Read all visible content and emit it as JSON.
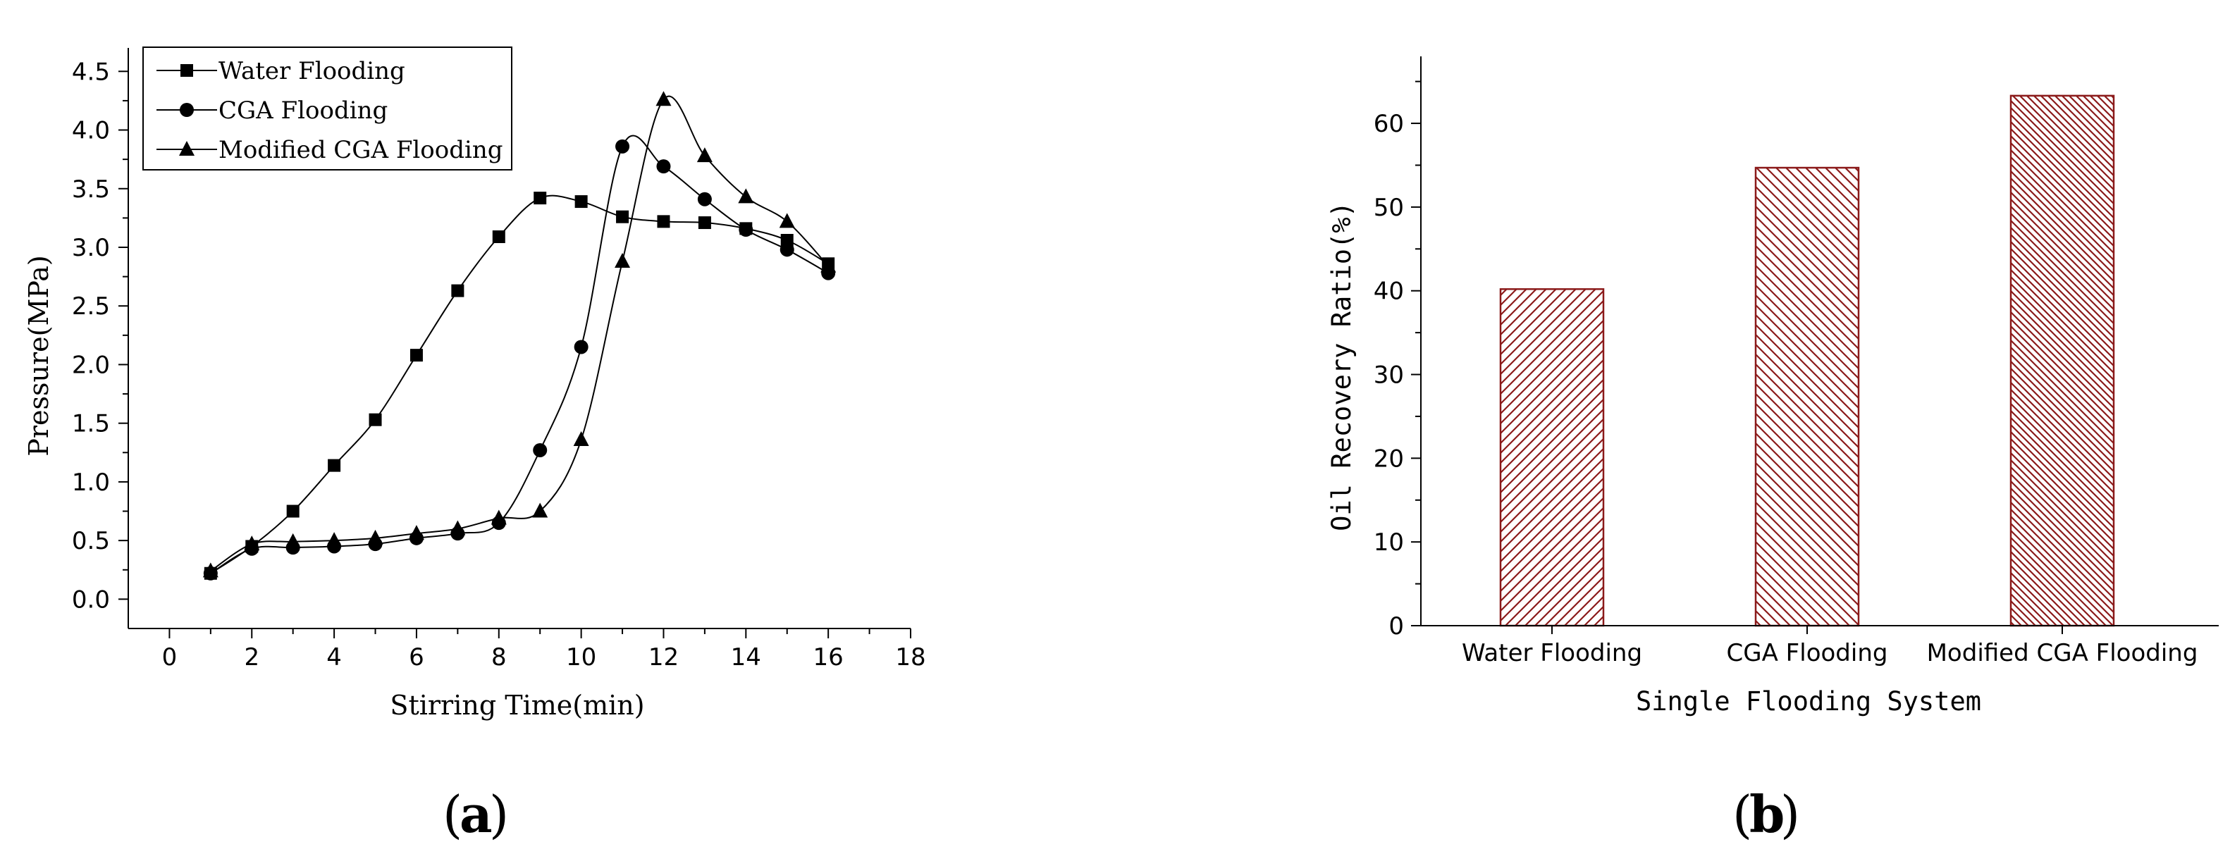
{
  "panel_labels": {
    "a": "a",
    "b": "b"
  },
  "colors": {
    "bar": "#8B1A1A",
    "axis": "#000000"
  },
  "chart_data": [
    {
      "type": "line",
      "xlabel": "Stirring Time(min)",
      "ylabel": "Pressure(MPa)",
      "xlim": [
        -1,
        18
      ],
      "ylim": [
        -0.25,
        4.7
      ],
      "xticks": [
        0,
        2,
        4,
        6,
        8,
        10,
        12,
        14,
        16,
        18
      ],
      "yticks": [
        0.0,
        0.5,
        1.0,
        1.5,
        2.0,
        2.5,
        3.0,
        3.5,
        4.0,
        4.5
      ],
      "xtick_labels": [
        "0",
        "2",
        "4",
        "6",
        "8",
        "10",
        "12",
        "14",
        "16",
        "18"
      ],
      "ytick_labels": [
        "0.0",
        "0.5",
        "1.0",
        "1.5",
        "2.0",
        "2.5",
        "3.0",
        "3.5",
        "4.0",
        "4.5"
      ],
      "legend_position": "top-left",
      "grid": false,
      "series": [
        {
          "name": "Water Flooding",
          "marker": "square",
          "x": [
            1,
            2,
            3,
            4,
            5,
            6,
            7,
            8,
            9,
            10,
            11,
            12,
            13,
            14,
            15,
            16
          ],
          "y": [
            0.22,
            0.45,
            0.75,
            1.14,
            1.53,
            2.08,
            2.63,
            3.09,
            3.42,
            3.39,
            3.26,
            3.22,
            3.21,
            3.16,
            3.06,
            2.86
          ]
        },
        {
          "name": "CGA Flooding",
          "marker": "circle",
          "x": [
            1,
            2,
            3,
            4,
            5,
            6,
            7,
            8,
            9,
            10,
            11,
            12,
            13,
            14,
            15,
            16
          ],
          "y": [
            0.22,
            0.43,
            0.44,
            0.45,
            0.47,
            0.52,
            0.56,
            0.65,
            1.27,
            2.15,
            3.86,
            3.69,
            3.41,
            3.15,
            2.98,
            2.78
          ]
        },
        {
          "name": "Modified CGA Flooding",
          "marker": "triangle",
          "x": [
            1,
            2,
            3,
            4,
            5,
            6,
            7,
            8,
            9,
            10,
            11,
            12,
            13,
            14,
            15,
            16
          ],
          "y": [
            0.24,
            0.47,
            0.49,
            0.5,
            0.52,
            0.56,
            0.6,
            0.69,
            0.75,
            1.36,
            2.88,
            4.26,
            3.78,
            3.43,
            3.22,
            2.84
          ]
        }
      ]
    },
    {
      "type": "bar",
      "xlabel": "Single Flooding System",
      "ylabel": "Oil Recovery Ratio(%)",
      "ylim": [
        0,
        68
      ],
      "yticks": [
        0,
        10,
        20,
        30,
        40,
        50,
        60
      ],
      "ytick_labels": [
        "0",
        "10",
        "20",
        "30",
        "40",
        "50",
        "60"
      ],
      "categories": [
        "Water Flooding",
        "CGA Flooding",
        "Modified CGA Flooding"
      ],
      "values": [
        40.2,
        54.7,
        63.3
      ],
      "grid": false
    }
  ]
}
